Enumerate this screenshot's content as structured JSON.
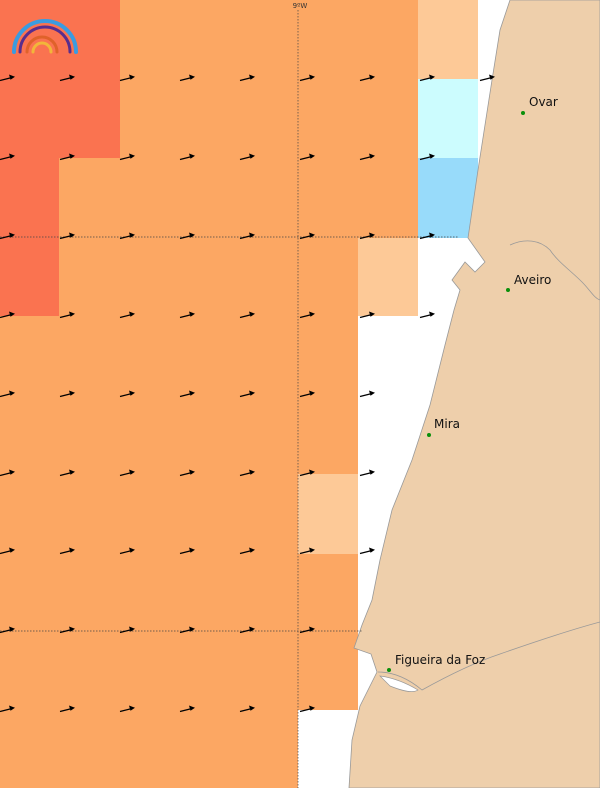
{
  "map": {
    "grid_label": "9ºW",
    "cell_colors": {
      "red": "#fa7350",
      "orange": "#fca763",
      "light_orange": "#fdc997",
      "pale_cyan": "#ccfcfe",
      "light_blue": "#98dbfa",
      "sea_white": "#ffffff",
      "land": "#eecfab",
      "coastline": "#999999",
      "gridline": "#444444",
      "arrow": "#000000",
      "city_dot": "#0a8f0a"
    },
    "cities": [
      {
        "name": "Ovar"
      },
      {
        "name": "Aveiro"
      },
      {
        "name": "Mira"
      },
      {
        "name": "Figueira da Foz"
      }
    ],
    "logo": {
      "icon": "rainbow-logo-icon"
    }
  }
}
